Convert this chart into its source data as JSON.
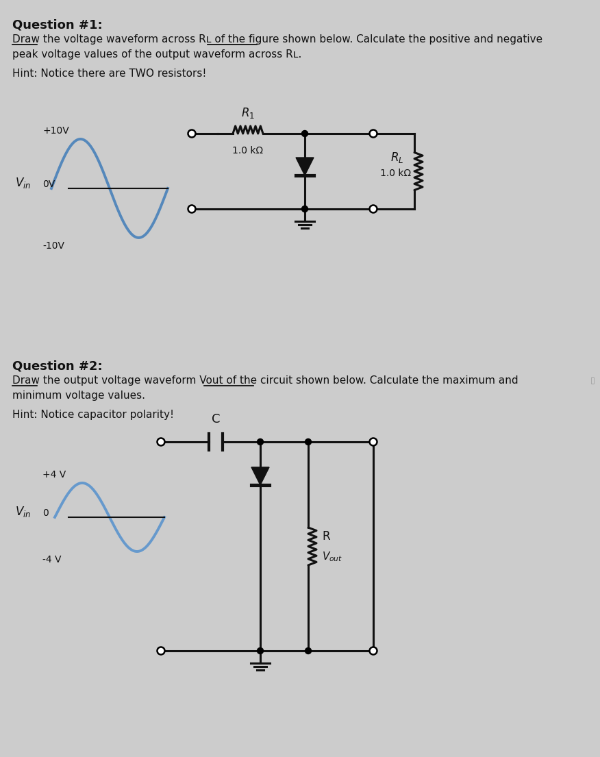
{
  "bg_color": "#cccccc",
  "title1": "Question #1:",
  "desc1_line1": "Draw the voltage waveform across Rʟ of the figure shown below. Calculate the positive and negative",
  "desc1_line2": "peak voltage values of the output waveform across Rʟ.",
  "hint1": "Hint: Notice there are TWO resistors!",
  "title2": "Question #2:",
  "desc2_line1": "Draw the output voltage waveform Vout of the circuit shown below. Calculate the maximum and",
  "desc2_line2": "minimum voltage values.",
  "hint2": "Hint: Notice capacitor polarity!",
  "wave_color1": "#5588bb",
  "wave_color2": "#6699cc",
  "circuit_color": "#111111",
  "text_color": "#111111",
  "underline_color": "#111111"
}
